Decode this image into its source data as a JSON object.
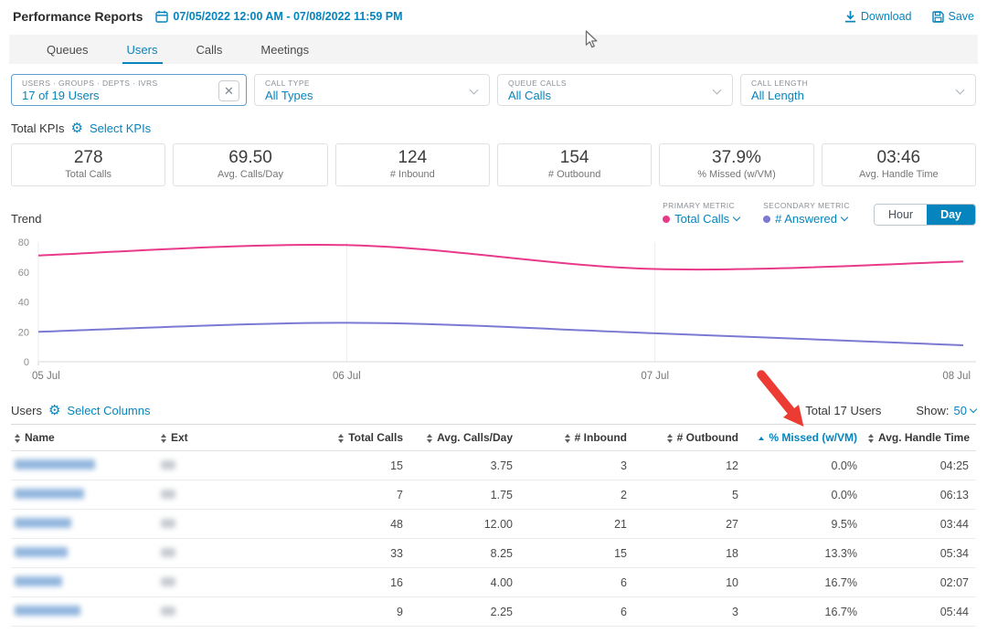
{
  "colors": {
    "accent": "#0684BD",
    "pink": "#E9398B",
    "purple": "#7B79D2",
    "arrow_red": "#EC3B33"
  },
  "header": {
    "title": "Performance Reports",
    "date_range": "07/05/2022 12:00 AM - 07/08/2022 11:59 PM",
    "download_label": "Download",
    "save_label": "Save"
  },
  "tabs": [
    {
      "label": "Queues",
      "active": false
    },
    {
      "label": "Users",
      "active": true
    },
    {
      "label": "Calls",
      "active": false
    },
    {
      "label": "Meetings",
      "active": false
    }
  ],
  "filters": [
    {
      "label": "USERS · GROUPS · DEPTS · IVRS",
      "value": "17 of 19 Users",
      "clearable": true
    },
    {
      "label": "CALL TYPE",
      "value": "All Types"
    },
    {
      "label": "QUEUE CALLS",
      "value": "All Calls"
    },
    {
      "label": "CALL LENGTH",
      "value": "All Length"
    }
  ],
  "kpis": {
    "section_label": "Total KPIs",
    "select_label": "Select KPIs",
    "cards": [
      {
        "value": "278",
        "label": "Total Calls"
      },
      {
        "value": "69.50",
        "label": "Avg. Calls/Day"
      },
      {
        "value": "124",
        "label": "# Inbound"
      },
      {
        "value": "154",
        "label": "# Outbound"
      },
      {
        "value": "37.9%",
        "label": "% Missed (w/VM)"
      },
      {
        "value": "03:46",
        "label": "Avg. Handle Time"
      }
    ]
  },
  "trend": {
    "section_label": "Trend",
    "primary_metric_label": "PRIMARY METRIC",
    "primary_metric": "Total Calls",
    "secondary_metric_label": "SECONDARY METRIC",
    "secondary_metric": "# Answered",
    "toggle": [
      "Hour",
      "Day"
    ],
    "active_toggle": "Day"
  },
  "chart_data": {
    "type": "line",
    "title": "Trend",
    "x": [
      "05 Jul",
      "06 Jul",
      "07 Jul",
      "08 Jul"
    ],
    "series": [
      {
        "name": "Total Calls",
        "color": "#E9398B",
        "values": [
          71,
          78,
          62,
          67
        ]
      },
      {
        "name": "# Answered",
        "color": "#7B79D2",
        "values": [
          20,
          26,
          19,
          11
        ]
      }
    ],
    "ylim": [
      0,
      80
    ],
    "yticks": [
      0,
      20,
      40,
      60,
      80
    ],
    "grid": "vertical-only",
    "legend_position": "top-right",
    "granularity": "Day"
  },
  "users_table": {
    "section_label": "Users",
    "select_label": "Select Columns",
    "total_label": "Total 17 Users",
    "show_label": "Show:",
    "show_value": "50",
    "sorted_column": "% Missed (w/VM)",
    "sort_direction": "asc",
    "columns": [
      {
        "label": "Name"
      },
      {
        "label": "Ext"
      },
      {
        "label": "Total Calls"
      },
      {
        "label": "Avg. Calls/Day"
      },
      {
        "label": "# Inbound"
      },
      {
        "label": "# Outbound"
      },
      {
        "label": "% Missed (w/VM)"
      },
      {
        "label": "Avg. Handle Time"
      }
    ],
    "rows": [
      {
        "name": "",
        "ext": "",
        "total_calls": "15",
        "avg_calls_day": "3.75",
        "inbound": "3",
        "outbound": "12",
        "missed": "0.0%",
        "handle_time": "04:25"
      },
      {
        "name": "",
        "ext": "",
        "total_calls": "7",
        "avg_calls_day": "1.75",
        "inbound": "2",
        "outbound": "5",
        "missed": "0.0%",
        "handle_time": "06:13"
      },
      {
        "name": "",
        "ext": "",
        "total_calls": "48",
        "avg_calls_day": "12.00",
        "inbound": "21",
        "outbound": "27",
        "missed": "9.5%",
        "handle_time": "03:44"
      },
      {
        "name": "",
        "ext": "",
        "total_calls": "33",
        "avg_calls_day": "8.25",
        "inbound": "15",
        "outbound": "18",
        "missed": "13.3%",
        "handle_time": "05:34"
      },
      {
        "name": "",
        "ext": "",
        "total_calls": "16",
        "avg_calls_day": "4.00",
        "inbound": "6",
        "outbound": "10",
        "missed": "16.7%",
        "handle_time": "02:07"
      },
      {
        "name": "",
        "ext": "",
        "total_calls": "9",
        "avg_calls_day": "2.25",
        "inbound": "6",
        "outbound": "3",
        "missed": "16.7%",
        "handle_time": "05:44"
      }
    ]
  }
}
